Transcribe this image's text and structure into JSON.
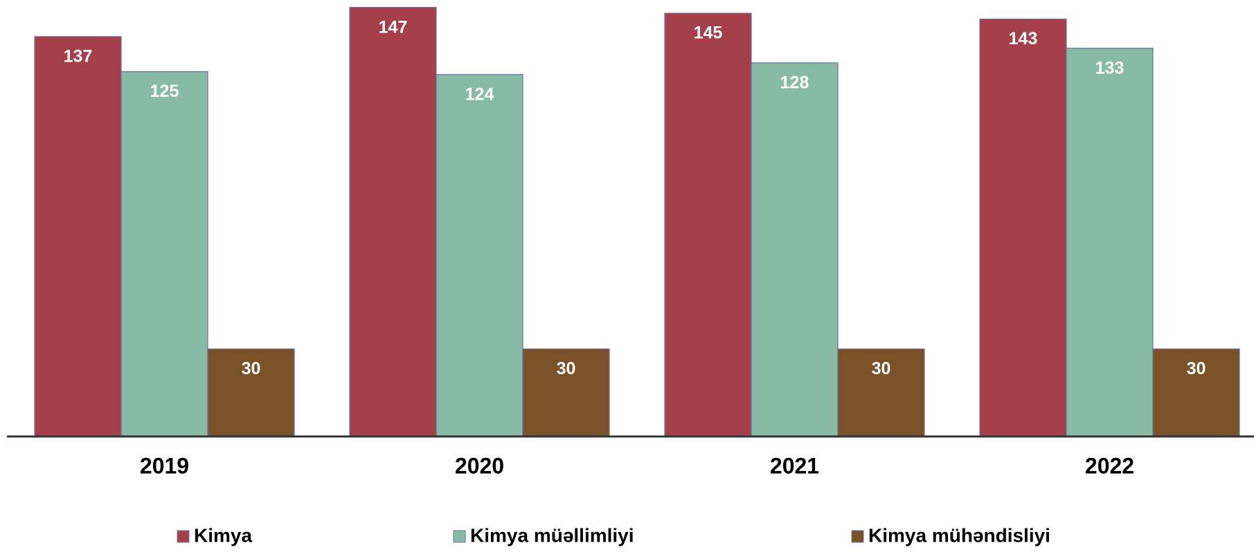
{
  "chart_data": {
    "type": "bar",
    "categories": [
      "2019",
      "2020",
      "2021",
      "2022"
    ],
    "series": [
      {
        "name": "Kimya",
        "color": "#a5404b",
        "values": [
          137,
          147,
          145,
          143
        ]
      },
      {
        "name": "Kimya müəllimliyi",
        "color": "#87bba6",
        "values": [
          125,
          124,
          128,
          133
        ]
      },
      {
        "name": "Kimya mühəndisliyi",
        "color": "#7b5128",
        "values": [
          30,
          30,
          30,
          30
        ]
      }
    ],
    "legend": "bottom"
  }
}
